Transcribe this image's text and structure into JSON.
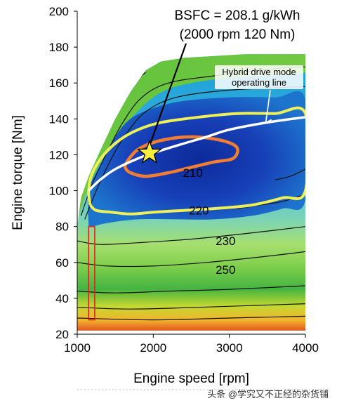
{
  "chart_data": {
    "type": "contour",
    "title": "",
    "xlabel": "Engine speed [rpm]",
    "ylabel": "Engine torque [Nm]",
    "xlim": [
      1000,
      4000
    ],
    "ylim": [
      20,
      200
    ],
    "x_ticks": [
      "1000",
      "2000",
      "3000",
      "4000"
    ],
    "y_ticks": [
      "20",
      "40",
      "60",
      "80",
      "100",
      "120",
      "140",
      "160",
      "180",
      "200"
    ],
    "grid": false,
    "annotation_point": {
      "label_line1": "BSFC = 208.1 g/kWh",
      "label_line2": "(2000 rpm 120 Nm)",
      "x": 1950,
      "y": 121
    },
    "contour_labels": [
      {
        "text": "210",
        "x": 2520,
        "y": 110
      },
      {
        "text": "220",
        "x": 2600,
        "y": 89
      },
      {
        "text": "230",
        "x": 2950,
        "y": 72
      },
      {
        "text": "250",
        "x": 2950,
        "y": 56
      }
    ],
    "operating_line": {
      "label_line1": "Hybrid drive mode",
      "label_line2": "operating line",
      "x": [
        1150,
        1300,
        1500,
        1800,
        2000,
        2300,
        2700,
        3000,
        3500,
        4000
      ],
      "y": [
        100,
        106,
        112,
        118,
        121,
        125,
        130,
        134,
        138,
        141
      ]
    },
    "colors": {
      "marker": "#f6ee3c",
      "operating_line": "#ffffff",
      "contour_210": "#ef7d33",
      "contour_220": "#eef05a",
      "highlight_box": "#e02020"
    }
  },
  "watermark": "头条 @学究又不正经的杂货铺"
}
